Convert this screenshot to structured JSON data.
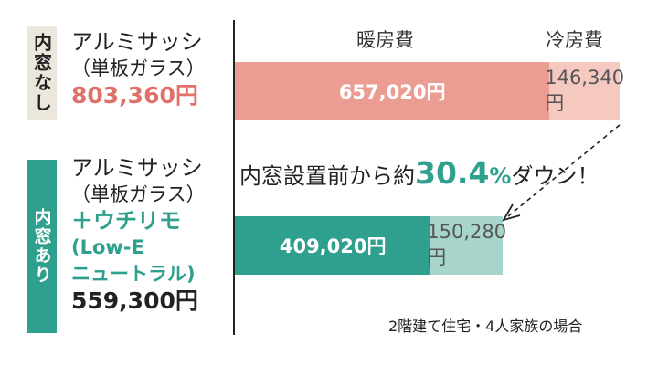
{
  "labels": {
    "without": "内窓なし",
    "with": "内窓あり"
  },
  "without_inner_window": {
    "line1": "アルミサッシ",
    "line2": "（単板ガラス）",
    "price": "803,360円"
  },
  "with_inner_window": {
    "line1": "アルミサッシ",
    "line2": "（単板ガラス）",
    "line3": "＋ウチリモ",
    "line4": "(Low-E",
    "line5": "ニュートラル)",
    "price": "559,300円"
  },
  "headings": {
    "heating": "暖房費",
    "cooling": "冷房費"
  },
  "reduction": {
    "prefix": "内窓設置前から約",
    "value": "30.4",
    "unit": "%",
    "suffix": "ダウン！"
  },
  "footnote": "2階建て住宅・4人家族の場合",
  "colors": {
    "heating_before": "#ec9d93",
    "cooling_before": "#f5c8c0",
    "heating_after": "#2fa08e",
    "cooling_after": "#a7d5cb",
    "accent_red": "#e0706a",
    "accent_green": "#2fa08e"
  },
  "chart_data": {
    "type": "bar",
    "orientation": "horizontal",
    "stacked": true,
    "categories": [
      "内窓なし",
      "内窓あり"
    ],
    "series": [
      {
        "name": "暖房費",
        "values": [
          657020,
          409020
        ],
        "value_labels": [
          "657,020円",
          "409,020円"
        ]
      },
      {
        "name": "冷房費",
        "values": [
          146340,
          150280
        ],
        "value_labels": [
          "146,340円",
          "150,280円"
        ]
      }
    ],
    "totals": [
      803360,
      559300
    ],
    "xlim": [
      0,
      803360
    ]
  }
}
